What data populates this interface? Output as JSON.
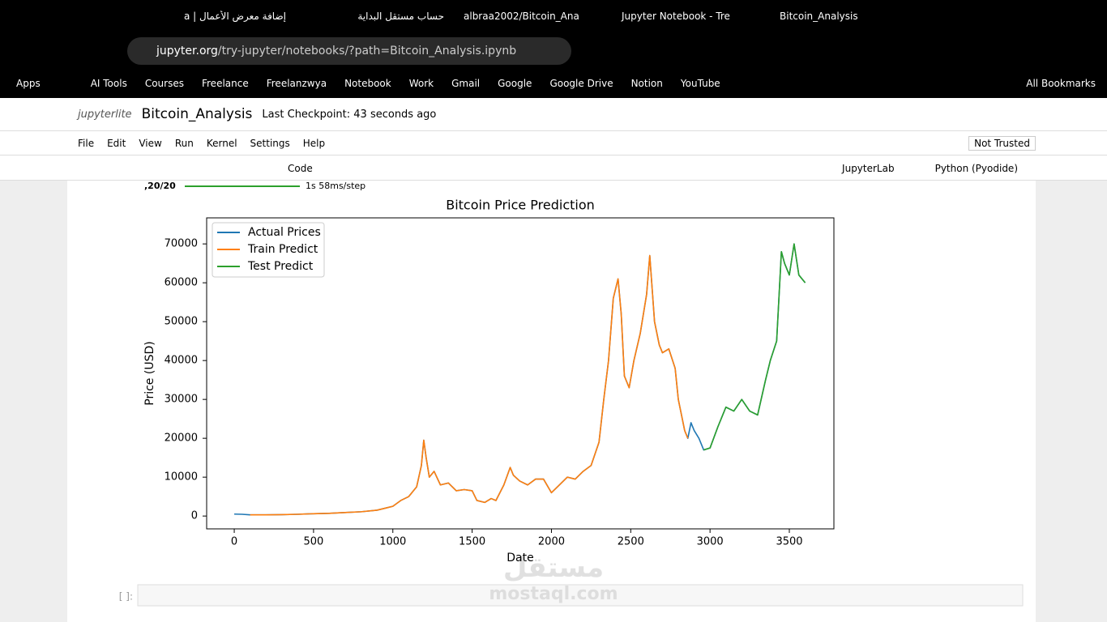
{
  "browser": {
    "tabs": [
      "إضافة معرض الأعمال | a",
      "حساب مستقل البداية",
      "albraa2002/Bitcoin_Ana",
      "Jupyter Notebook - Tre",
      "Bitcoin_Analysis"
    ],
    "url": {
      "host": "jupyter.org",
      "path": "/try-jupyter/notebooks/?path=Bitcoin_Analysis.ipynb"
    },
    "bookmarks": [
      "Apps",
      "AI Tools",
      "Courses",
      "Freelance",
      "Freelanzwya",
      "Notebook",
      "Work",
      "Gmail",
      "Google",
      "Google Drive",
      "Notion",
      "YouTube"
    ],
    "all_bookmarks": "All Bookmarks"
  },
  "jupyter": {
    "logo": "jupyterlite",
    "notebook_name": "Bitcoin_Analysis",
    "checkpoint": "Last Checkpoint: 43 seconds ago",
    "menu": [
      "File",
      "Edit",
      "View",
      "Run",
      "Kernel",
      "Settings",
      "Help"
    ],
    "trusted": "Not Trusted",
    "cell_type": "Code",
    "lab_link": "JupyterLab",
    "kernel": "Python (Pyodide)",
    "progress_count": ",20/20",
    "progress_time": "1s 58ms/step",
    "prompt": "[ ]:",
    "watermark": [
      "مستقل",
      "mostaql.com"
    ]
  },
  "chart_data": {
    "type": "line",
    "title": "Bitcoin Price Prediction",
    "xlabel": "Date",
    "ylabel": "Price (USD)",
    "xlim": [
      -174,
      3781
    ],
    "ylim": [
      -3300,
      76700
    ],
    "xticks": [
      0,
      500,
      1000,
      1500,
      2000,
      2500,
      3000,
      3500
    ],
    "yticks": [
      0,
      10000,
      20000,
      30000,
      40000,
      50000,
      60000,
      70000
    ],
    "legend": "upper left",
    "series": [
      {
        "name": "Actual Prices",
        "color": "#1f77b4",
        "x": [
          0,
          50,
          100,
          200,
          300,
          400,
          500,
          600,
          700,
          800,
          900,
          950,
          1000,
          1050,
          1100,
          1150,
          1180,
          1195,
          1210,
          1230,
          1260,
          1300,
          1350,
          1400,
          1450,
          1500,
          1530,
          1580,
          1620,
          1650,
          1700,
          1740,
          1760,
          1800,
          1850,
          1900,
          1950,
          2000,
          2050,
          2100,
          2150,
          2200,
          2250,
          2300,
          2330,
          2360,
          2390,
          2420,
          2440,
          2460,
          2490,
          2520,
          2560,
          2600,
          2620,
          2650,
          2680,
          2700,
          2740,
          2780,
          2800,
          2840,
          2860,
          2880,
          2900,
          2930,
          2960,
          3000,
          3050,
          3100,
          3150,
          3200,
          3250,
          3300,
          3350,
          3380,
          3420,
          3450,
          3470,
          3500,
          3530,
          3560,
          3600
        ],
        "values": [
          500,
          450,
          300,
          300,
          350,
          450,
          600,
          700,
          900,
          1100,
          1500,
          2000,
          2500,
          4000,
          5000,
          7500,
          13000,
          19500,
          15000,
          10000,
          11500,
          8000,
          8500,
          6500,
          6800,
          6500,
          4000,
          3500,
          4500,
          4000,
          8000,
          12500,
          10500,
          9000,
          8000,
          9500,
          9500,
          6000,
          8000,
          10000,
          9500,
          11500,
          13000,
          19000,
          30000,
          40000,
          56000,
          61000,
          52000,
          36000,
          33000,
          40000,
          47000,
          57000,
          67000,
          50000,
          44000,
          42000,
          43000,
          38000,
          30000,
          22000,
          20000,
          24000,
          22000,
          20000,
          17000,
          17500,
          23000,
          28000,
          27000,
          30000,
          27000,
          26000,
          35000,
          40000,
          45000,
          68000,
          65000,
          62000,
          70000,
          62000,
          60000
        ]
      },
      {
        "name": "Train Predict",
        "color": "#ff7f0e",
        "x": [
          100,
          200,
          300,
          400,
          500,
          600,
          700,
          800,
          900,
          950,
          1000,
          1050,
          1100,
          1150,
          1180,
          1195,
          1210,
          1230,
          1260,
          1300,
          1350,
          1400,
          1450,
          1500,
          1530,
          1580,
          1620,
          1650,
          1700,
          1740,
          1760,
          1800,
          1850,
          1900,
          1950,
          2000,
          2050,
          2100,
          2150,
          2200,
          2250,
          2300,
          2330,
          2360,
          2390,
          2420,
          2440,
          2460,
          2490,
          2520,
          2560,
          2600,
          2620,
          2650,
          2680,
          2700,
          2740,
          2780,
          2800,
          2840,
          2860
        ],
        "values": [
          300,
          300,
          350,
          450,
          600,
          700,
          900,
          1100,
          1500,
          2000,
          2500,
          4000,
          5000,
          7500,
          13000,
          19500,
          15000,
          10000,
          11500,
          8000,
          8500,
          6500,
          6800,
          6500,
          4000,
          3500,
          4500,
          4000,
          8000,
          12500,
          10500,
          9000,
          8000,
          9500,
          9500,
          6000,
          8000,
          10000,
          9500,
          11500,
          13000,
          19000,
          30000,
          40000,
          56000,
          61000,
          52000,
          36000,
          33000,
          40000,
          47000,
          57000,
          67000,
          50000,
          44000,
          42000,
          43000,
          38000,
          30000,
          22000,
          20000
        ]
      },
      {
        "name": "Test Predict",
        "color": "#2ca02c",
        "x": [
          2960,
          3000,
          3050,
          3100,
          3150,
          3200,
          3250,
          3300,
          3350,
          3380,
          3420,
          3450,
          3470,
          3500,
          3530,
          3560,
          3600
        ],
        "values": [
          17000,
          17500,
          23000,
          28000,
          27000,
          30000,
          27000,
          26000,
          35000,
          40000,
          45000,
          68000,
          65000,
          62000,
          70000,
          62000,
          60000
        ]
      }
    ]
  }
}
